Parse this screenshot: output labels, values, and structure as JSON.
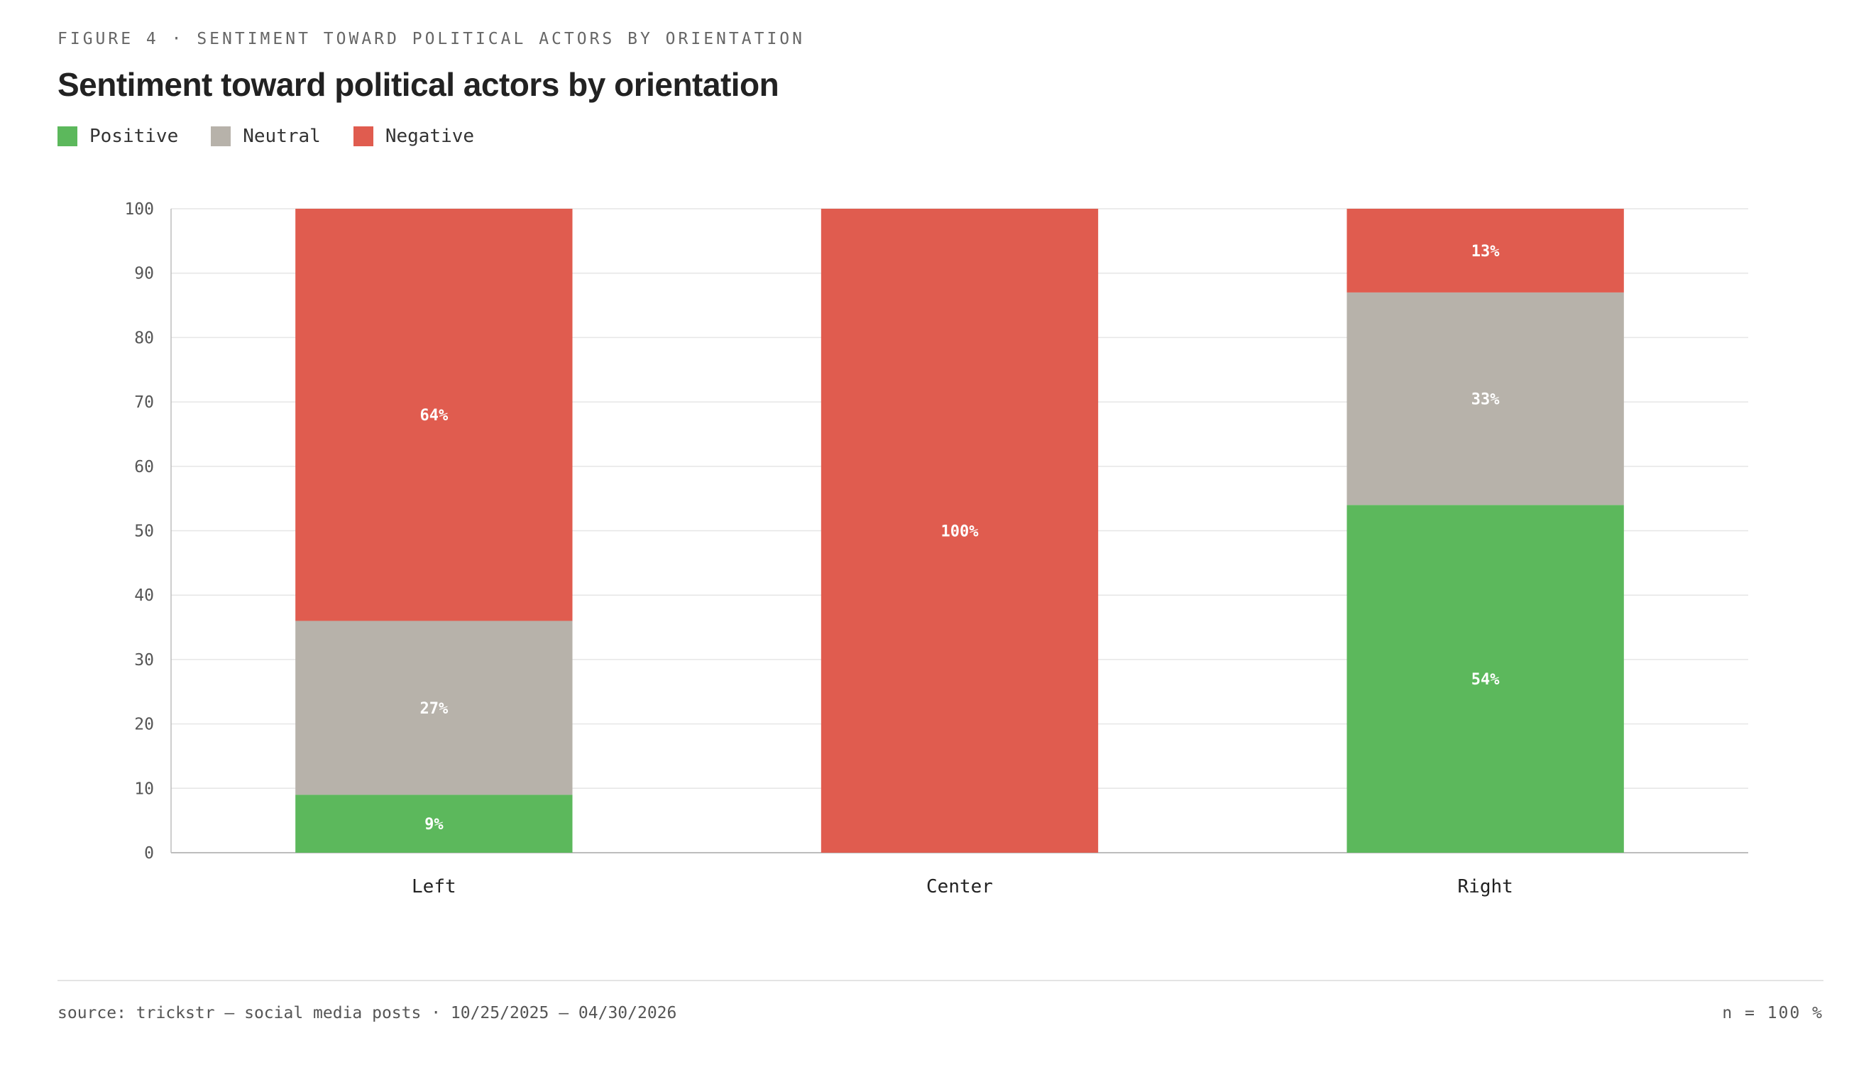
{
  "figure_label": "FIGURE 4 · SENTIMENT TOWARD POLITICAL ACTORS BY ORIENTATION",
  "legend": [
    {
      "label": "Positive",
      "color": "#5cb85c"
    },
    {
      "label": "Neutral",
      "color": "#b7b2aa"
    },
    {
      "label": "Negative",
      "color": "#e05c4f"
    }
  ],
  "chart_data": {
    "type": "bar",
    "stacked": true,
    "title": "Sentiment toward political actors by orientation",
    "xlabel": "",
    "ylabel": "",
    "ylim": [
      0,
      100
    ],
    "yticks": [
      0,
      10,
      20,
      30,
      40,
      50,
      60,
      70,
      80,
      90,
      100
    ],
    "grid": true,
    "legend_position": "top-left",
    "categories": [
      "Left",
      "Center",
      "Right"
    ],
    "series": [
      {
        "name": "Positive",
        "color": "#5cb85c",
        "values": [
          9,
          0,
          54
        ],
        "labels": [
          "9%",
          "",
          "54%"
        ]
      },
      {
        "name": "Neutral",
        "color": "#b7b2aa",
        "values": [
          27,
          0,
          33
        ],
        "labels": [
          "27%",
          "",
          "33%"
        ]
      },
      {
        "name": "Negative",
        "color": "#e05c4f",
        "values": [
          64,
          100,
          13
        ],
        "labels": [
          "64%",
          "100%",
          "13%"
        ]
      }
    ]
  },
  "footer": {
    "source": "source: trickstr — social media posts · 10/25/2025 — 04/30/2026",
    "n_label": "n = 100 %"
  }
}
